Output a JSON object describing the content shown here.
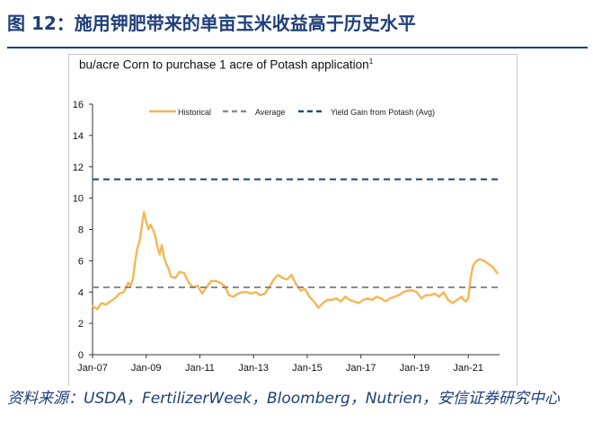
{
  "figure": {
    "title": "图 12：施用钾肥带来的单亩玉米收益高于历史水平",
    "source_text": "资料来源：USDA，FertilizerWeek，Bloomberg，Nutrien，安信证券研究中心"
  },
  "chart_data": {
    "type": "line",
    "title": "bu/acre Corn to purchase 1 acre of Potash application",
    "title_superscript": "1",
    "xlabel": "",
    "ylabel": "",
    "ylim": [
      0,
      16
    ],
    "yticks": [
      0,
      2,
      4,
      6,
      8,
      10,
      12,
      14,
      16
    ],
    "xlim": [
      "2007-01",
      "2022-03"
    ],
    "xticks": [
      "Jan-07",
      "Jan-09",
      "Jan-11",
      "Jan-13",
      "Jan-15",
      "Jan-17",
      "Jan-19",
      "Jan-21"
    ],
    "xtick_dates": [
      "2007-01",
      "2009-01",
      "2011-01",
      "2013-01",
      "2015-01",
      "2017-01",
      "2019-01",
      "2021-01"
    ],
    "grid": false,
    "legend_position": "top",
    "series": [
      {
        "name": "Historical",
        "style": "solid",
        "color": "#f5b654",
        "x": [
          "2007-01",
          "2007-03",
          "2007-05",
          "2007-07",
          "2007-09",
          "2007-11",
          "2008-01",
          "2008-03",
          "2008-05",
          "2008-06",
          "2008-07",
          "2008-08",
          "2008-09",
          "2008-10",
          "2008-11",
          "2008-12",
          "2009-01",
          "2009-02",
          "2009-03",
          "2009-04",
          "2009-05",
          "2009-06",
          "2009-07",
          "2009-08",
          "2009-09",
          "2009-10",
          "2009-11",
          "2009-12",
          "2010-02",
          "2010-04",
          "2010-06",
          "2010-08",
          "2010-10",
          "2010-12",
          "2011-02",
          "2011-04",
          "2011-06",
          "2011-08",
          "2011-10",
          "2011-12",
          "2012-02",
          "2012-04",
          "2012-06",
          "2012-08",
          "2012-10",
          "2012-12",
          "2013-02",
          "2013-04",
          "2013-06",
          "2013-08",
          "2013-10",
          "2013-12",
          "2014-02",
          "2014-04",
          "2014-06",
          "2014-08",
          "2014-10",
          "2014-12",
          "2015-02",
          "2015-04",
          "2015-06",
          "2015-08",
          "2015-10",
          "2015-12",
          "2016-02",
          "2016-04",
          "2016-06",
          "2016-08",
          "2016-10",
          "2016-12",
          "2017-02",
          "2017-04",
          "2017-06",
          "2017-08",
          "2017-10",
          "2017-12",
          "2018-02",
          "2018-04",
          "2018-06",
          "2018-08",
          "2018-10",
          "2018-12",
          "2019-02",
          "2019-04",
          "2019-06",
          "2019-08",
          "2019-10",
          "2019-12",
          "2020-02",
          "2020-04",
          "2020-06",
          "2020-08",
          "2020-10",
          "2020-11",
          "2020-12",
          "2021-01",
          "2021-02",
          "2021-03",
          "2021-04",
          "2021-06",
          "2021-08",
          "2021-10",
          "2021-12",
          "2022-02"
        ],
        "values": [
          3.1,
          2.9,
          3.3,
          3.2,
          3.4,
          3.6,
          3.9,
          4.0,
          4.6,
          4.4,
          4.8,
          5.9,
          6.8,
          7.2,
          8.2,
          9.1,
          8.5,
          8.0,
          8.3,
          8.0,
          7.6,
          6.9,
          6.4,
          7.0,
          6.2,
          5.8,
          5.5,
          5.0,
          4.9,
          5.3,
          5.2,
          4.6,
          4.3,
          4.4,
          3.9,
          4.3,
          4.7,
          4.7,
          4.6,
          4.4,
          3.8,
          3.7,
          3.9,
          4.0,
          4.0,
          3.9,
          4.0,
          3.8,
          3.9,
          4.3,
          4.8,
          5.1,
          4.9,
          4.8,
          5.1,
          4.5,
          4.1,
          4.2,
          3.7,
          3.4,
          3.0,
          3.3,
          3.5,
          3.5,
          3.6,
          3.4,
          3.7,
          3.5,
          3.4,
          3.3,
          3.5,
          3.6,
          3.5,
          3.7,
          3.6,
          3.4,
          3.6,
          3.7,
          3.8,
          4.0,
          4.1,
          4.1,
          4.0,
          3.6,
          3.8,
          3.8,
          3.9,
          3.7,
          4.0,
          3.5,
          3.3,
          3.5,
          3.7,
          3.5,
          3.4,
          3.6,
          4.8,
          5.6,
          5.9,
          6.1,
          6.0,
          5.8,
          5.6,
          5.2
        ]
      },
      {
        "name": "Average",
        "style": "dashed",
        "color": "#8a8a8a",
        "value": 4.3
      },
      {
        "name": "Yield Gain from Potash (Avg)",
        "style": "dashed",
        "color": "#2e4a74",
        "value": 11.2
      }
    ]
  }
}
